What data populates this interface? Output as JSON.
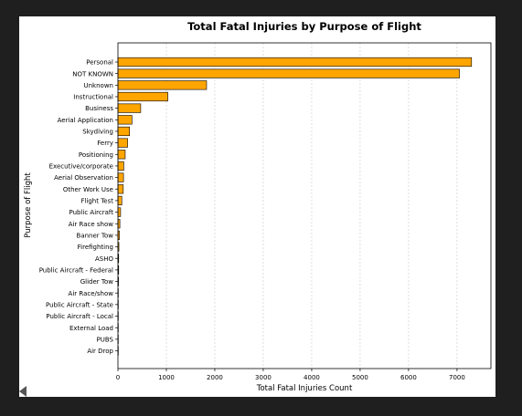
{
  "chart_data": {
    "type": "bar",
    "orientation": "horizontal",
    "title": "Total Fatal Injuries by Purpose of Flight",
    "xlabel": "Total Fatal Injuries Count",
    "ylabel": "Purpose of Flight",
    "xlim": [
      0,
      7700
    ],
    "xticks": [
      0,
      1000,
      2000,
      3000,
      4000,
      5000,
      6000,
      7000
    ],
    "grid": "vertical dashed",
    "bar_color": "#ffa500",
    "bar_edge_color": "#000000",
    "categories": [
      "Personal",
      "NOT KNOWN",
      "Unknown",
      "Instructional",
      "Business",
      "Aerial Application",
      "Skydiving",
      "Ferry",
      "Positioning",
      "Executive/corporate",
      "Aerial Observation",
      "Other Work Use",
      "Flight Test",
      "Public Aircraft",
      "Air Race show",
      "Banner Tow",
      "Firefighting",
      "ASHO",
      "Public Aircraft - Federal",
      "Glider Tow",
      "Air Race/show",
      "Public Aircraft - State",
      "Public Aircraft - Local",
      "External Load",
      "PUBS",
      "Air Drop"
    ],
    "values": [
      7300,
      7050,
      1830,
      1030,
      470,
      290,
      240,
      200,
      150,
      120,
      115,
      110,
      80,
      55,
      40,
      30,
      20,
      15,
      15,
      12,
      5,
      3,
      3,
      2,
      2,
      1
    ]
  }
}
